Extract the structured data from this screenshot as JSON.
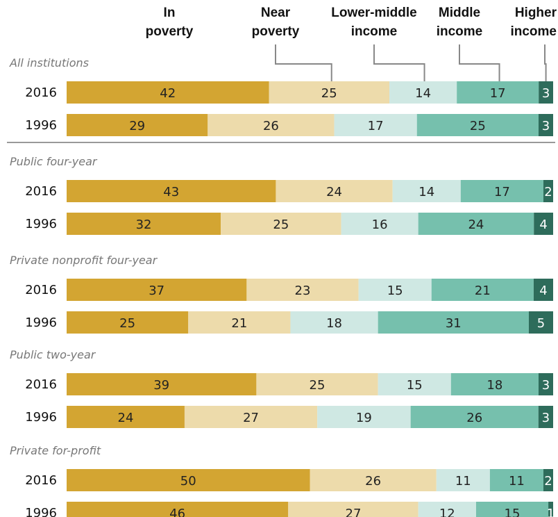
{
  "chart_data": {
    "type": "bar",
    "orientation": "horizontal",
    "stacked": true,
    "categories": [
      "In poverty",
      "Near poverty",
      "Lower-middle income",
      "Middle income",
      "Higher income"
    ],
    "legend": [
      {
        "lines": [
          "In",
          "poverty"
        ],
        "color": "#d3a532"
      },
      {
        "lines": [
          "Near",
          "poverty"
        ],
        "color": "#eddbab"
      },
      {
        "lines": [
          "Lower-middle",
          "income"
        ],
        "color": "#cfe8e3"
      },
      {
        "lines": [
          "Middle",
          "income"
        ],
        "color": "#76c0ad"
      },
      {
        "lines": [
          "Higher",
          "income"
        ],
        "color": "#2e6c5b"
      }
    ],
    "colors": [
      "#d3a532",
      "#eddbab",
      "#cfe8e3",
      "#76c0ad",
      "#2e6c5b"
    ],
    "label_colors": [
      "#222222",
      "#222222",
      "#222222",
      "#222222",
      "#ffffff"
    ],
    "xlim": [
      0,
      100
    ],
    "groups": [
      {
        "title": "All institutions",
        "rows": [
          {
            "year": "2016",
            "values": [
              42,
              25,
              14,
              17,
              3
            ]
          },
          {
            "year": "1996",
            "values": [
              29,
              26,
              17,
              25,
              3
            ]
          }
        ]
      },
      {
        "title": "Public four-year",
        "rows": [
          {
            "year": "2016",
            "values": [
              43,
              24,
              14,
              17,
              2
            ]
          },
          {
            "year": "1996",
            "values": [
              32,
              25,
              16,
              24,
              4
            ]
          }
        ]
      },
      {
        "title": "Private nonprofit four-year",
        "rows": [
          {
            "year": "2016",
            "values": [
              37,
              23,
              15,
              21,
              4
            ]
          },
          {
            "year": "1996",
            "values": [
              25,
              21,
              18,
              31,
              5
            ]
          }
        ]
      },
      {
        "title": "Public two-year",
        "rows": [
          {
            "year": "2016",
            "values": [
              39,
              25,
              15,
              18,
              3
            ]
          },
          {
            "year": "1996",
            "values": [
              24,
              27,
              19,
              26,
              3
            ]
          }
        ]
      },
      {
        "title": "Private for-profit",
        "rows": [
          {
            "year": "2016",
            "values": [
              50,
              26,
              11,
              11,
              2
            ]
          },
          {
            "year": "1996",
            "values": [
              46,
              27,
              12,
              15,
              1
            ]
          }
        ]
      }
    ]
  }
}
